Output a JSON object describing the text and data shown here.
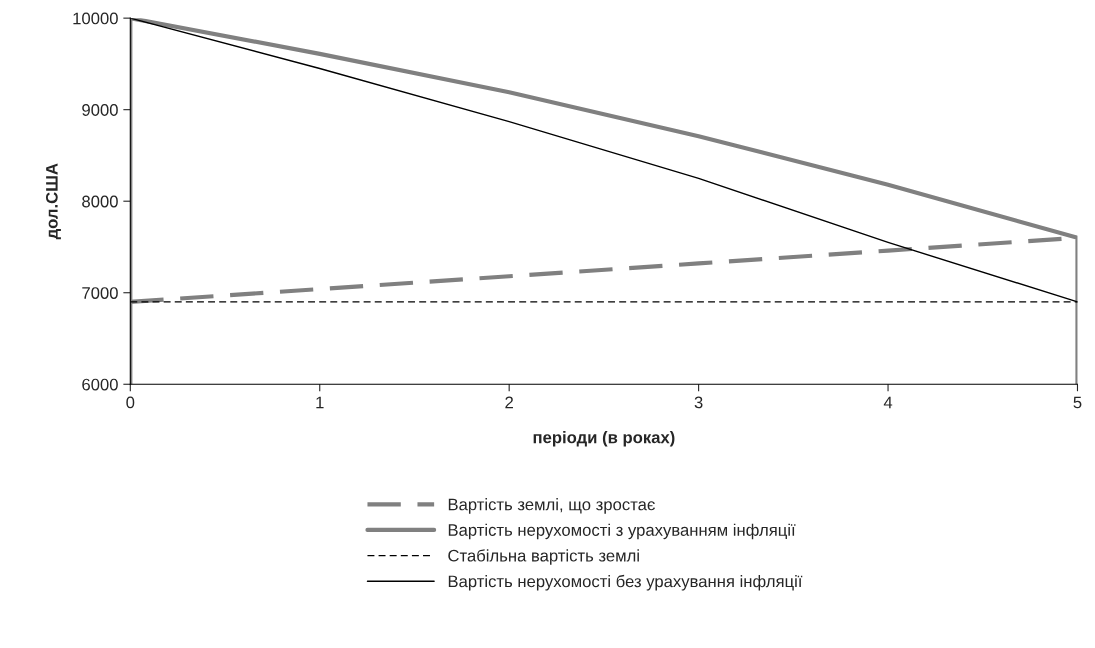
{
  "chart_data": {
    "type": "line",
    "xlabel": "періоди (в роках)",
    "ylabel": "дол.США",
    "x": [
      0,
      1,
      2,
      3,
      4,
      5
    ],
    "series": [
      {
        "name": "Вартість землі, що зростає",
        "color": "#808080",
        "values": [
          6900,
          7040,
          7180,
          7320,
          7460,
          7600
        ],
        "line_style": "dashed"
      },
      {
        "name": "Вартість нерухомості з урахуванням інфляції",
        "color": "#808080",
        "x": [
          0,
          0,
          1,
          2,
          3,
          4,
          5,
          5
        ],
        "values": [
          6000,
          10000,
          9610,
          9190,
          8710,
          8180,
          7600,
          6000
        ],
        "line_style": "solid"
      },
      {
        "name": "Стабільна вартість землі",
        "color": "#000000",
        "values": [
          6900,
          6900,
          6900,
          6900,
          6900,
          6900
        ],
        "line_style": "dashed"
      },
      {
        "name": "Вартість нерухомості без урахування інфляції",
        "color": "#000000",
        "values": [
          10000,
          9450,
          8870,
          8250,
          7550,
          6900
        ],
        "line_style": "solid"
      }
    ],
    "xlim": [
      0,
      5
    ],
    "xticks": [
      0,
      1,
      2,
      3,
      4,
      5
    ],
    "ylim": [
      6000,
      10000
    ],
    "yticks": [
      6000,
      7000,
      8000,
      9000,
      10000
    ],
    "grid": false,
    "legend": "bottom",
    "marker": "none"
  }
}
